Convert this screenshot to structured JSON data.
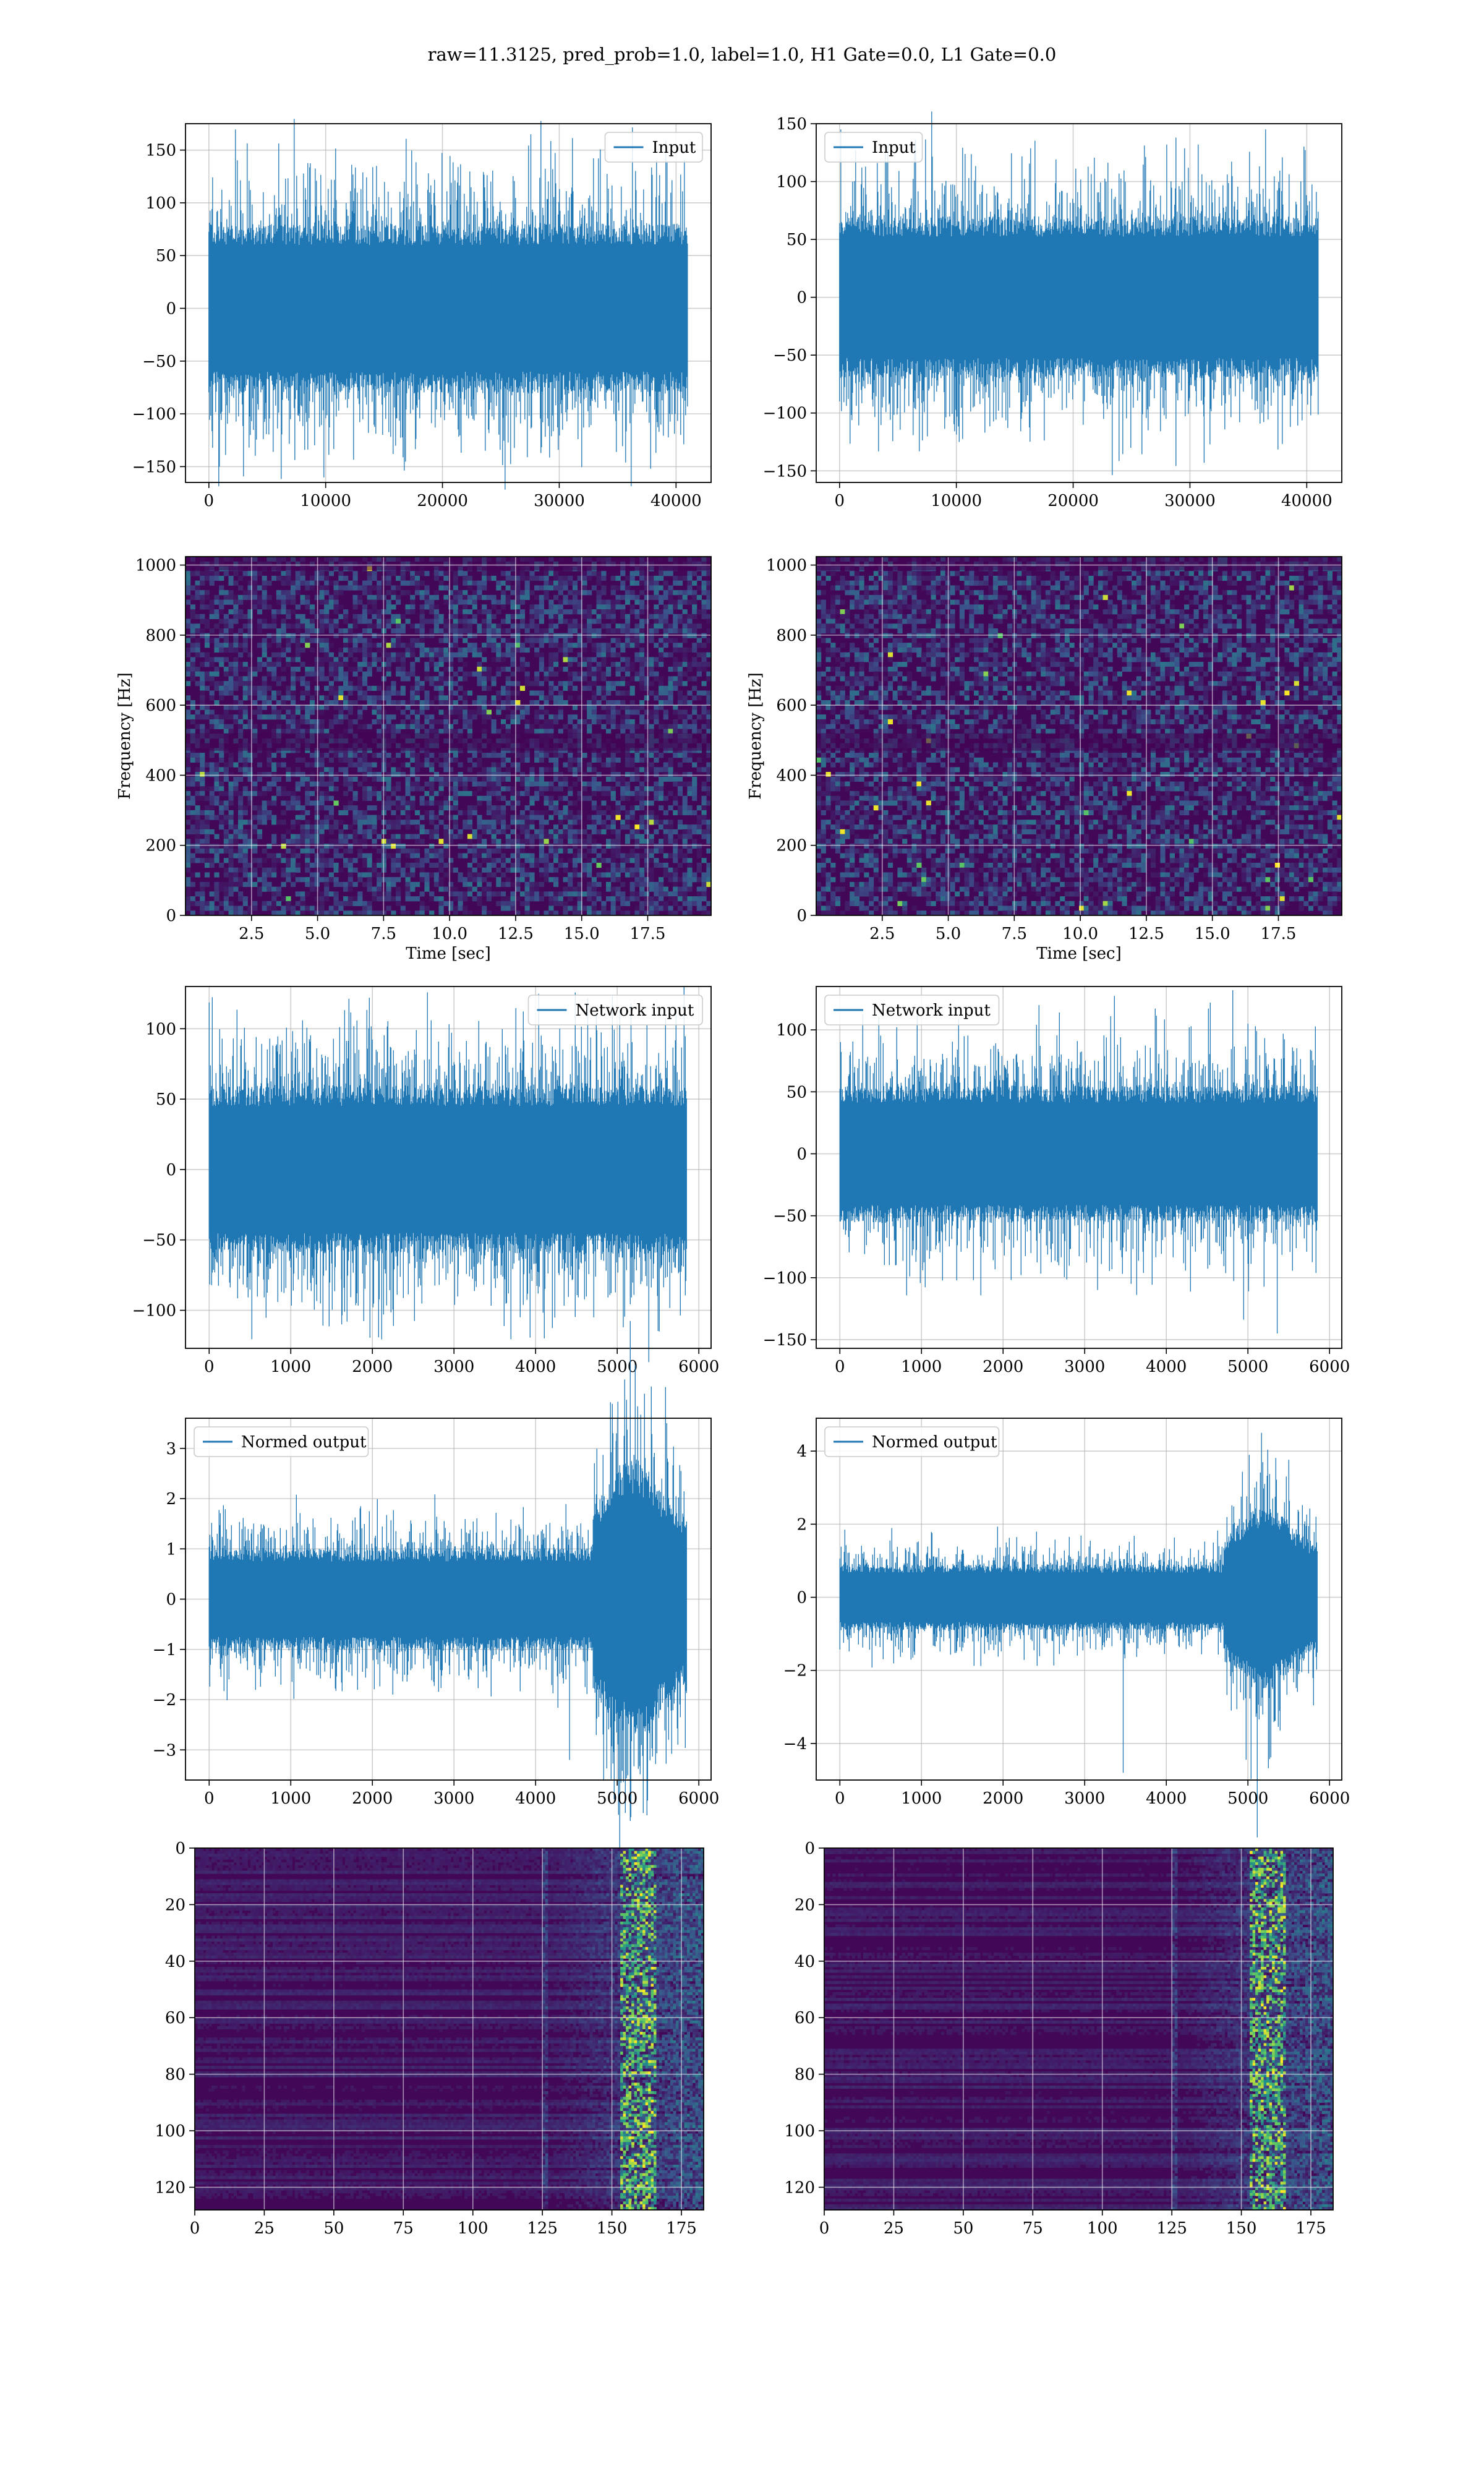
{
  "figure": {
    "suptitle": "raw=11.3125, pred_prob=1.0, label=1.0, H1 Gate=0.0, L1 Gate=0.0"
  },
  "colors": {
    "line": "#1f77b4",
    "grid": "#b0b0b0",
    "viridis_low": "#440154",
    "viridis_mid": "#21918c",
    "viridis_high": "#fde725"
  },
  "chart_data": [
    {
      "id": "h1-input",
      "type": "line",
      "series": [
        {
          "name": "Input"
        }
      ],
      "legend": "top-right",
      "xlim": [
        -2000,
        43000
      ],
      "ylim": [
        -165,
        175
      ],
      "xticks": [
        0,
        10000,
        20000,
        30000,
        40000
      ],
      "yticks": [
        -150,
        -100,
        -50,
        0,
        50,
        100,
        150
      ],
      "n_samples": 40960,
      "envelope": [
        -80,
        80
      ],
      "peaks": [
        165,
        -152,
        135,
        -135
      ]
    },
    {
      "id": "l1-input",
      "type": "line",
      "series": [
        {
          "name": "Input"
        }
      ],
      "legend": "top-left",
      "xlim": [
        -2000,
        43000
      ],
      "ylim": [
        -160,
        150
      ],
      "xticks": [
        0,
        10000,
        20000,
        30000,
        40000
      ],
      "yticks": [
        -150,
        -100,
        -50,
        0,
        50,
        100,
        150
      ],
      "n_samples": 40960,
      "envelope": [
        -70,
        70
      ],
      "peaks": [
        138,
        -143,
        132,
        -125
      ]
    },
    {
      "id": "h1-spectrogram",
      "type": "heatmap",
      "xlabel": "Time [sec]",
      "ylabel": "Frequency [Hz]",
      "xlim": [
        0,
        19.9
      ],
      "ylim": [
        0,
        1024
      ],
      "xticks": [
        2.5,
        5.0,
        7.5,
        10.0,
        12.5,
        15.0,
        17.5
      ],
      "yticks": [
        0,
        200,
        400,
        600,
        800,
        1000
      ],
      "colormap": "viridis"
    },
    {
      "id": "l1-spectrogram",
      "type": "heatmap",
      "xlabel": "Time [sec]",
      "ylabel": "Frequency [Hz]",
      "xlim": [
        0,
        19.9
      ],
      "ylim": [
        0,
        1024
      ],
      "xticks": [
        2.5,
        5.0,
        7.5,
        10.0,
        12.5,
        15.0,
        17.5
      ],
      "yticks": [
        0,
        200,
        400,
        600,
        800,
        1000
      ],
      "colormap": "viridis"
    },
    {
      "id": "h1-network-input",
      "type": "line",
      "series": [
        {
          "name": "Network input"
        }
      ],
      "legend": "top-right",
      "xlim": [
        -290,
        6150
      ],
      "ylim": [
        -127,
        130
      ],
      "xticks": [
        0,
        1000,
        2000,
        3000,
        4000,
        5000,
        6000
      ],
      "yticks": [
        -100,
        -50,
        0,
        50,
        100
      ],
      "n_samples": 5850,
      "envelope": [
        -60,
        60
      ],
      "peaks": [
        122,
        -110,
        118,
        -112
      ]
    },
    {
      "id": "l1-network-input",
      "type": "line",
      "series": [
        {
          "name": "Network input"
        }
      ],
      "legend": "top-left",
      "xlim": [
        -290,
        6150
      ],
      "ylim": [
        -157,
        135
      ],
      "xticks": [
        0,
        1000,
        2000,
        3000,
        4000,
        5000,
        6000
      ],
      "yticks": [
        -150,
        -100,
        -50,
        0,
        50,
        100
      ],
      "n_samples": 5850,
      "envelope": [
        -55,
        55
      ],
      "peaks": [
        132,
        -145,
        120,
        -110
      ]
    },
    {
      "id": "h1-normed-output",
      "type": "line",
      "series": [
        {
          "name": "Normed output"
        }
      ],
      "legend": "top-left",
      "xlim": [
        -290,
        6150
      ],
      "ylim": [
        -3.6,
        3.6
      ],
      "xticks": [
        0,
        1000,
        2000,
        3000,
        4000,
        5000,
        6000
      ],
      "yticks": [
        -3,
        -2,
        -1,
        0,
        1,
        2,
        3
      ],
      "n_samples": 5850,
      "envelope": [
        -1.0,
        1.0
      ],
      "burst_range": [
        4700,
        5900
      ],
      "peaks": [
        3.3,
        -3.2
      ]
    },
    {
      "id": "l1-normed-output",
      "type": "line",
      "series": [
        {
          "name": "Normed output"
        }
      ],
      "legend": "top-left",
      "xlim": [
        -290,
        6150
      ],
      "ylim": [
        -5.0,
        4.9
      ],
      "xticks": [
        0,
        1000,
        2000,
        3000,
        4000,
        5000,
        6000
      ],
      "yticks": [
        -4,
        -2,
        0,
        2,
        4
      ],
      "n_samples": 5850,
      "envelope": [
        -0.9,
        0.9
      ],
      "burst_range": [
        4700,
        5900
      ],
      "peaks": [
        4.5,
        -4.8
      ]
    },
    {
      "id": "h1-feature-map",
      "type": "heatmap",
      "xlim": [
        0,
        183
      ],
      "ylim": [
        128,
        0
      ],
      "xticks": [
        0,
        25,
        50,
        75,
        100,
        125,
        150,
        175
      ],
      "yticks": [
        0,
        20,
        40,
        60,
        80,
        100,
        120
      ],
      "colormap": "viridis"
    },
    {
      "id": "l1-feature-map",
      "type": "heatmap",
      "xlim": [
        0,
        183
      ],
      "ylim": [
        128,
        0
      ],
      "xticks": [
        0,
        25,
        50,
        75,
        100,
        125,
        150,
        175
      ],
      "yticks": [
        0,
        20,
        40,
        60,
        80,
        100,
        120
      ],
      "colormap": "viridis"
    }
  ]
}
